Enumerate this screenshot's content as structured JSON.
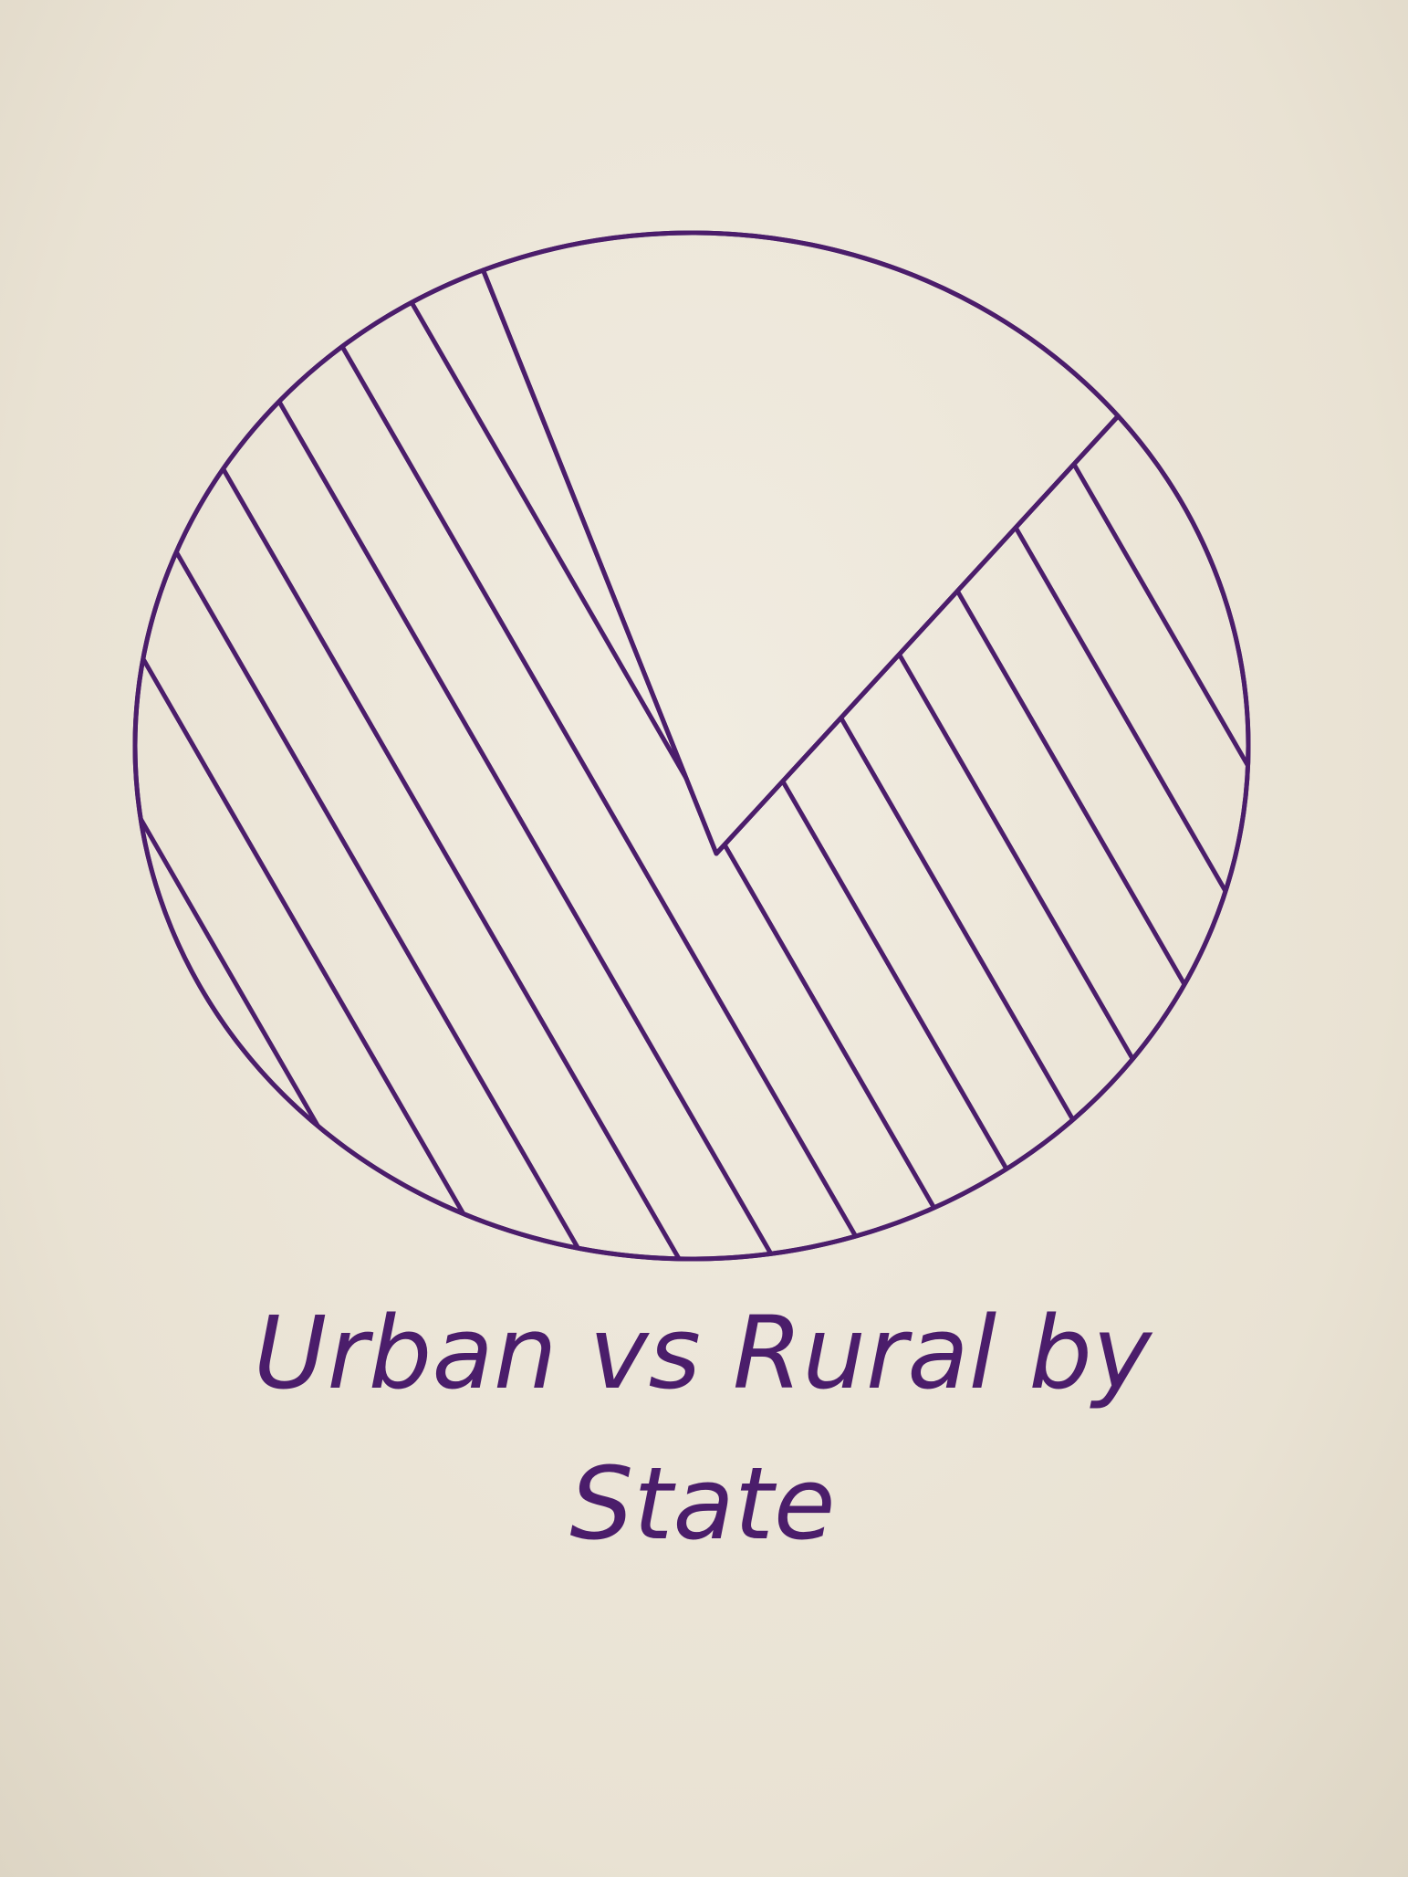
{
  "chart_data": {
    "type": "pie",
    "title": "Urban vs Rural by State",
    "values": [
      80,
      20
    ],
    "hatched": [
      true,
      false
    ],
    "color": "#4b1d6b"
  }
}
